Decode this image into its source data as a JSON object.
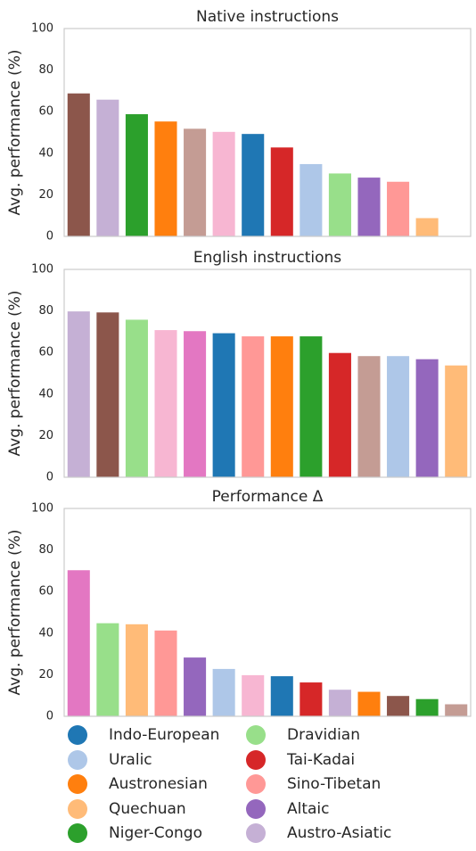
{
  "chart_data": [
    {
      "type": "bar",
      "title": "Native instructions",
      "ylabel": "Avg. performance (%)",
      "xlabel": "",
      "ylim": [
        0,
        100
      ],
      "yticks": [
        0,
        20,
        40,
        60,
        80,
        100
      ],
      "grid": false,
      "bars": [
        {
          "family": "Austro-Asiatic-brown",
          "value": 69,
          "color": "#8c564b"
        },
        {
          "family": "Austro-Asiatic",
          "value": 66,
          "color": "#c5b0d5"
        },
        {
          "family": "Niger-Congo",
          "value": 59,
          "color": "#2ca02c"
        },
        {
          "family": "Austronesian",
          "value": 55.5,
          "color": "#ff7f0e"
        },
        {
          "family": "unlabeled-tan",
          "value": 52,
          "color": "#c49c94"
        },
        {
          "family": "unlabeled-pink",
          "value": 50.5,
          "color": "#f7b6d2"
        },
        {
          "family": "Indo-European",
          "value": 49.5,
          "color": "#1f77b4"
        },
        {
          "family": "Tai-Kadai",
          "value": 43,
          "color": "#d62728"
        },
        {
          "family": "Uralic",
          "value": 35,
          "color": "#aec7e8"
        },
        {
          "family": "Dravidian",
          "value": 30.5,
          "color": "#98df8a"
        },
        {
          "family": "Altaic",
          "value": 28.5,
          "color": "#9467bd"
        },
        {
          "family": "Sino-Tibetan",
          "value": 26.5,
          "color": "#ff9896"
        },
        {
          "family": "Quechuan",
          "value": 9,
          "color": "#ffbb78"
        }
      ]
    },
    {
      "type": "bar",
      "title": "English instructions",
      "ylabel": "Avg. performance (%)",
      "xlabel": "",
      "ylim": [
        0,
        100
      ],
      "yticks": [
        0,
        20,
        40,
        60,
        80,
        100
      ],
      "grid": false,
      "bars": [
        {
          "family": "Austro-Asiatic",
          "value": 80,
          "color": "#c5b0d5"
        },
        {
          "family": "unlabeled-brown",
          "value": 79.5,
          "color": "#8c564b"
        },
        {
          "family": "Dravidian",
          "value": 76,
          "color": "#98df8a"
        },
        {
          "family": "unlabeled-pink",
          "value": 71,
          "color": "#f7b6d2"
        },
        {
          "family": "unlabeled-magenta",
          "value": 70.5,
          "color": "#e377c2"
        },
        {
          "family": "Indo-European",
          "value": 69.5,
          "color": "#1f77b4"
        },
        {
          "family": "Sino-Tibetan",
          "value": 68,
          "color": "#ff9896"
        },
        {
          "family": "Austronesian",
          "value": 68,
          "color": "#ff7f0e"
        },
        {
          "family": "Niger-Congo",
          "value": 68,
          "color": "#2ca02c"
        },
        {
          "family": "Tai-Kadai",
          "value": 60,
          "color": "#d62728"
        },
        {
          "family": "unlabeled-tan",
          "value": 58.5,
          "color": "#c49c94"
        },
        {
          "family": "Uralic",
          "value": 58.5,
          "color": "#aec7e8"
        },
        {
          "family": "Altaic",
          "value": 57,
          "color": "#9467bd"
        },
        {
          "family": "Quechuan",
          "value": 54,
          "color": "#ffbb78"
        }
      ]
    },
    {
      "type": "bar",
      "title": "Performance Δ",
      "ylabel": "Avg. performance (%)",
      "xlabel": "",
      "ylim": [
        0,
        100
      ],
      "yticks": [
        0,
        20,
        40,
        60,
        80,
        100
      ],
      "grid": false,
      "bars": [
        {
          "family": "unlabeled-magenta",
          "value": 70.5,
          "color": "#e377c2"
        },
        {
          "family": "Dravidian",
          "value": 45,
          "color": "#98df8a"
        },
        {
          "family": "Quechuan",
          "value": 44.5,
          "color": "#ffbb78"
        },
        {
          "family": "Sino-Tibetan",
          "value": 41.5,
          "color": "#ff9896"
        },
        {
          "family": "Altaic",
          "value": 28.5,
          "color": "#9467bd"
        },
        {
          "family": "Uralic",
          "value": 23,
          "color": "#aec7e8"
        },
        {
          "family": "unlabeled-pink",
          "value": 20,
          "color": "#f7b6d2"
        },
        {
          "family": "Indo-European",
          "value": 19.5,
          "color": "#1f77b4"
        },
        {
          "family": "Tai-Kadai",
          "value": 16.5,
          "color": "#d62728"
        },
        {
          "family": "Austro-Asiatic",
          "value": 13,
          "color": "#c5b0d5"
        },
        {
          "family": "Austronesian",
          "value": 12,
          "color": "#ff7f0e"
        },
        {
          "family": "unlabeled-brown",
          "value": 10,
          "color": "#8c564b"
        },
        {
          "family": "Niger-Congo",
          "value": 8.5,
          "color": "#2ca02c"
        },
        {
          "family": "unlabeled-tan",
          "value": 6,
          "color": "#c49c94"
        }
      ]
    }
  ],
  "legend": {
    "placement": "bottom",
    "columns": 2,
    "items": [
      {
        "label": "Indo-European",
        "color": "#1f77b4"
      },
      {
        "label": "Uralic",
        "color": "#aec7e8"
      },
      {
        "label": "Austronesian",
        "color": "#ff7f0e"
      },
      {
        "label": "Quechuan",
        "color": "#ffbb78"
      },
      {
        "label": "Niger-Congo",
        "color": "#2ca02c"
      },
      {
        "label": "Dravidian",
        "color": "#98df8a"
      },
      {
        "label": "Tai-Kadai",
        "color": "#d62728"
      },
      {
        "label": "Sino-Tibetan",
        "color": "#ff9896"
      },
      {
        "label": "Altaic",
        "color": "#9467bd"
      },
      {
        "label": "Austro-Asiatic",
        "color": "#c5b0d5"
      }
    ]
  }
}
